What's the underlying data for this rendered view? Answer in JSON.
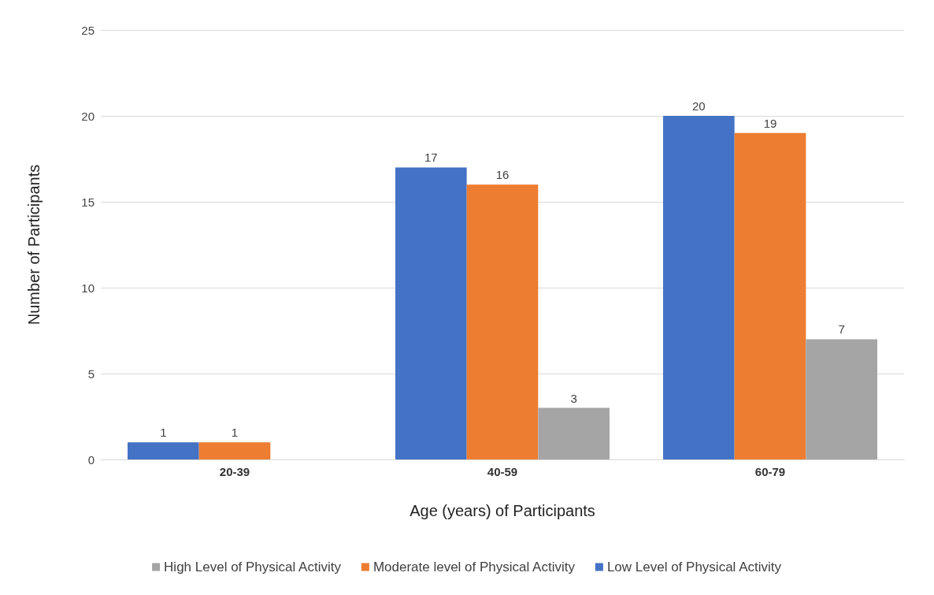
{
  "chart_data": {
    "type": "bar",
    "xlabel": "Age (years) of Participants",
    "ylabel": "Number of Participants",
    "categories": [
      "20-39",
      "40-59",
      "60-79"
    ],
    "series": [
      {
        "name": "Low Level of Physical Activity",
        "color": "#4472c4",
        "values": [
          1,
          17,
          20
        ]
      },
      {
        "name": "Moderate level of Physical Activity",
        "color": "#ed7d31",
        "values": [
          1,
          16,
          19
        ]
      },
      {
        "name": "High Level of Physical Activity",
        "color": "#a5a5a5",
        "values": [
          null,
          3,
          7
        ]
      }
    ],
    "ylim": [
      0,
      25
    ],
    "yticks": [
      0,
      5,
      10,
      15,
      20,
      25
    ],
    "grid": "y",
    "legend": "bottom",
    "data_labels": true
  }
}
